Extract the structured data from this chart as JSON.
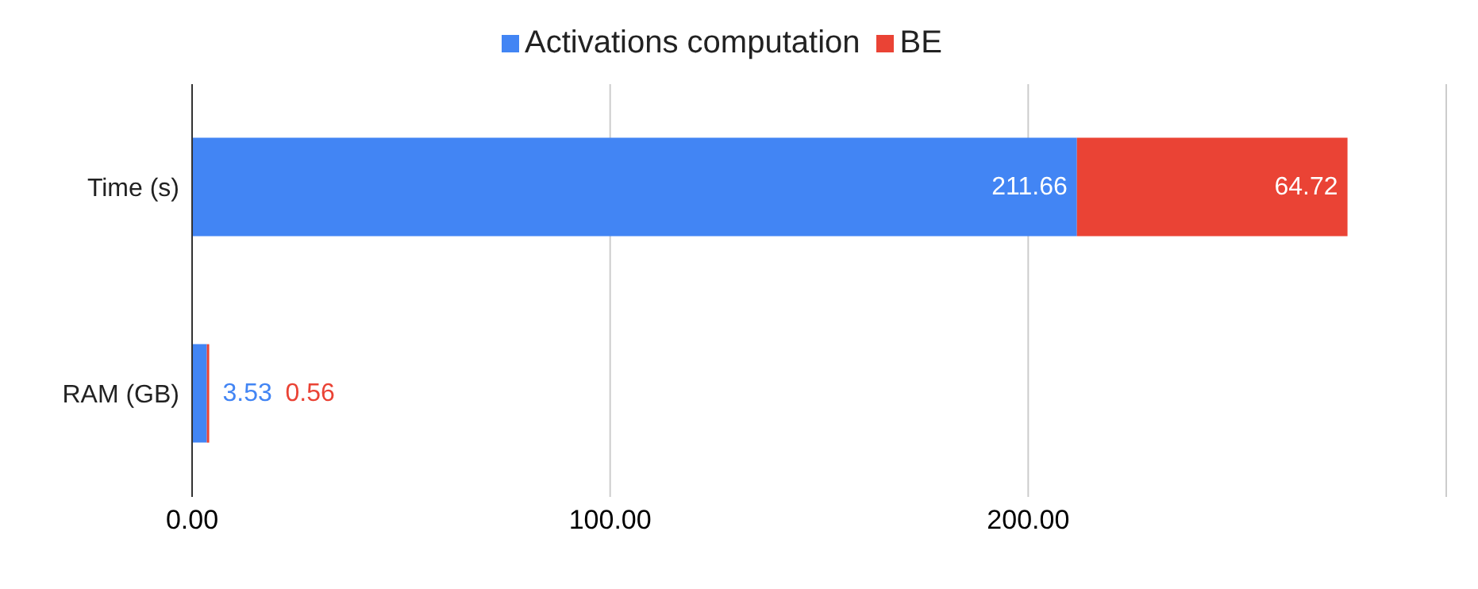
{
  "chart_data": {
    "type": "bar",
    "orientation": "horizontal",
    "stacked": true,
    "categories": [
      "Time (s)",
      "RAM (GB)"
    ],
    "series": [
      {
        "name": "Activations computation",
        "color": "#4285f4",
        "values": [
          211.66,
          3.53
        ],
        "value_labels": [
          "211.66",
          "3.53"
        ]
      },
      {
        "name": "BE",
        "color": "#ea4335",
        "values": [
          64.72,
          0.56
        ],
        "value_labels": [
          "64.72",
          "0.56"
        ]
      }
    ],
    "xlim": [
      0,
      300
    ],
    "xticks": [
      {
        "value": 0,
        "label": "0.00"
      },
      {
        "value": 100,
        "label": "100.00"
      },
      {
        "value": 200,
        "label": "200.00"
      },
      {
        "value": 300,
        "label": null
      }
    ],
    "grid": "x",
    "legend": "top"
  }
}
